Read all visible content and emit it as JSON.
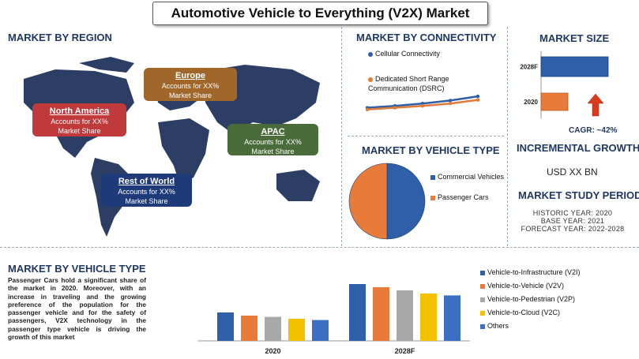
{
  "title": "Automotive Vehicle to Everything (V2X) Market",
  "region": {
    "heading": "MARKET BY REGION",
    "boxes": [
      {
        "name": "North America",
        "text1": "Accounts for XX%",
        "text2": "Market Share",
        "color": "#c0393b"
      },
      {
        "name": "Europe",
        "text1": "Accounts for XX%",
        "text2": "Market Share",
        "color": "#a0662a"
      },
      {
        "name": "APAC",
        "text1": "Accounts for XX%",
        "text2": "Market Share",
        "color": "#4a6b3a"
      },
      {
        "name": "Rest of World",
        "text1": "Accounts for XX%",
        "text2": "Market Share",
        "color": "#1e3a78"
      }
    ]
  },
  "connectivity": {
    "heading": "MARKET BY CONNECTIVITY",
    "legend": [
      {
        "label": "Cellular Connectivity",
        "color": "#2e5fa8"
      },
      {
        "label": "Dedicated Short Range Communication (DSRC)",
        "color": "#e07b39"
      }
    ]
  },
  "vehicle_type_pie": {
    "heading": "MARKET BY VEHICLE TYPE",
    "legend": [
      {
        "label": "Commercial Vehicles",
        "color": "#2e5fa8"
      },
      {
        "label": "Passenger Cars",
        "color": "#e87b3a"
      }
    ]
  },
  "market_size": {
    "heading": "MARKET SIZE",
    "cagr": "CAGR: ~42%",
    "arrow_color": "#d93a1a"
  },
  "incremental": {
    "heading": "INCREMENTAL GROWTH",
    "value": "USD XX BN"
  },
  "study_period": {
    "heading": "MARKET STUDY PERIOD",
    "lines": [
      "HISTORIC YEAR: 2020",
      "BASE YEAR: 2021",
      "FORECAST YEAR: 2022-2028"
    ]
  },
  "bottom": {
    "heading": "MARKET BY VEHICLE TYPE",
    "paragraph": "Passenger Cars hold a significant share of the market in 2020. Moreover, with an increase in traveling and the growing preference of the population for the passenger vehicle and for the safety of passengers, V2X technology in the passenger type vehicle is driving the growth of this market"
  },
  "chart_data": [
    {
      "type": "line",
      "x": [
        1,
        2,
        3,
        4,
        5
      ],
      "series": [
        {
          "name": "Cellular Connectivity",
          "values": [
            2.3,
            2.6,
            3.0,
            3.5,
            4.2
          ],
          "color": "#2e5fa8"
        },
        {
          "name": "Dedicated Short Range Communication (DSRC)",
          "values": [
            2.0,
            2.3,
            2.6,
            3.0,
            3.6
          ],
          "color": "#e07b39"
        }
      ],
      "ylim": [
        0,
        5
      ]
    },
    {
      "type": "pie",
      "categories": [
        "Commercial Vehicles",
        "Passenger Cars"
      ],
      "values": [
        50,
        50
      ],
      "colors": [
        "#2e5fa8",
        "#e87b3a"
      ]
    },
    {
      "type": "bar",
      "orientation": "horizontal",
      "categories": [
        "2028F",
        "2020"
      ],
      "values": [
        100,
        40
      ],
      "colors": [
        "#2e5fa8",
        "#e87b3a"
      ],
      "xlim": [
        0,
        100
      ]
    },
    {
      "type": "bar",
      "categories": [
        "2020",
        "2028F"
      ],
      "series": [
        {
          "name": "Vehicle-to-Infrastructure (V2I)",
          "values": [
            45,
            90
          ],
          "color": "#2e5fa8"
        },
        {
          "name": "Vehicle-to-Vehicle (V2V)",
          "values": [
            40,
            85
          ],
          "color": "#e87b3a"
        },
        {
          "name": "Vehicle-to-Pedestrian (V2P)",
          "values": [
            38,
            80
          ],
          "color": "#a8a8a8"
        },
        {
          "name": "Vehicle-to-Cloud (V2C)",
          "values": [
            35,
            75
          ],
          "color": "#f5c000"
        },
        {
          "name": "Others",
          "values": [
            33,
            72
          ],
          "color": "#3a6fc4"
        }
      ],
      "ylim": [
        0,
        100
      ]
    }
  ]
}
